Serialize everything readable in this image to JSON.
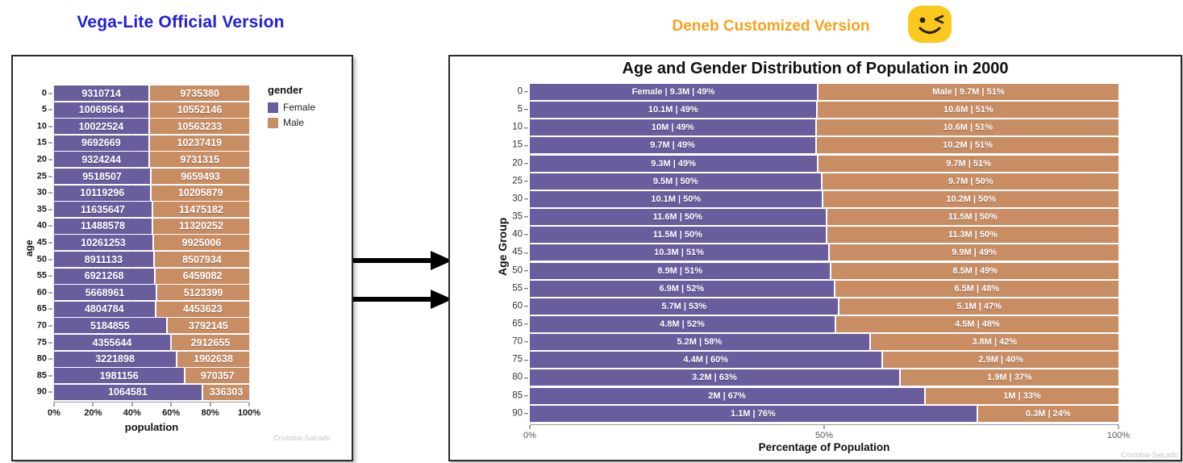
{
  "page": {
    "left_heading": "Vega-Lite Official Version",
    "right_heading": "Deneb Customized Version",
    "colors": {
      "left_heading": "#1f1fdd",
      "right_heading": "#f9a21b",
      "female": "#6a5d9e",
      "male": "#c98d64",
      "emoji_yellow": "#fcc81d",
      "arrow": "#000000"
    },
    "icons": {
      "right_heading_emoji": "winking-face",
      "between_panels": "right-arrow"
    }
  },
  "chart_data": [
    {
      "type": "bar",
      "variant": "horizontal-normalized-stacked",
      "title": "",
      "legend_title": "gender",
      "legend_position": "top-right",
      "categories": [
        "0",
        "5",
        "10",
        "15",
        "20",
        "25",
        "30",
        "35",
        "40",
        "45",
        "50",
        "55",
        "60",
        "65",
        "70",
        "75",
        "80",
        "85",
        "90"
      ],
      "series": [
        {
          "name": "Female",
          "color": "#6a5d9e",
          "values": [
            9310714,
            10069564,
            10022524,
            9692669,
            9324244,
            9518507,
            10119296,
            11635647,
            11488578,
            10261253,
            8911133,
            6921268,
            5668961,
            4804784,
            5184855,
            4355644,
            3221898,
            1981156,
            1064581
          ]
        },
        {
          "name": "Male",
          "color": "#c98d64",
          "values": [
            9735380,
            10552146,
            10563233,
            10237419,
            9731315,
            9659493,
            10205879,
            11475182,
            11320252,
            9925006,
            8507934,
            6459082,
            5123399,
            4453623,
            3792145,
            2912655,
            1902638,
            970357,
            336303
          ]
        }
      ],
      "xlabel": "population",
      "ylabel": "age",
      "x_ticks": [
        "0%",
        "20%",
        "40%",
        "60%",
        "80%",
        "100%"
      ],
      "xlim": [
        "0%",
        "100%"
      ],
      "grid": true,
      "bar_label_style": "raw population values on bars",
      "watermark": "Cristobal-Salcado"
    },
    {
      "type": "bar",
      "variant": "horizontal-normalized-stacked",
      "title": "Age and Gender Distribution of Population in 2000",
      "categories": [
        "0",
        "5",
        "10",
        "15",
        "20",
        "25",
        "30",
        "35",
        "40",
        "45",
        "50",
        "55",
        "60",
        "65",
        "70",
        "75",
        "80",
        "85",
        "90"
      ],
      "series": [
        {
          "name": "Female",
          "color": "#6a5d9e",
          "values": [
            9310714,
            10069564,
            10022524,
            9692669,
            9324244,
            9518507,
            10119296,
            11635647,
            11488578,
            10261253,
            8911133,
            6921268,
            5668961,
            4804784,
            5184855,
            4355644,
            3221898,
            1981156,
            1064581
          ],
          "labels": [
            "Female | 9.3M | 49%",
            "10.1M | 49%",
            "10M | 49%",
            "9.7M | 49%",
            "9.3M | 49%",
            "9.5M | 50%",
            "10.1M | 50%",
            "11.6M | 50%",
            "11.5M | 50%",
            "10.3M | 51%",
            "8.9M | 51%",
            "6.9M | 52%",
            "5.7M | 53%",
            "4.8M | 52%",
            "5.2M | 58%",
            "4.4M | 60%",
            "3.2M | 63%",
            "2M | 67%",
            "1.1M | 76%"
          ]
        },
        {
          "name": "Male",
          "color": "#c98d64",
          "values": [
            9735380,
            10552146,
            10563233,
            10237419,
            9731315,
            9659493,
            10205879,
            11475182,
            11320252,
            9925006,
            8507934,
            6459082,
            5123399,
            4453623,
            3792145,
            2912655,
            1902638,
            970357,
            336303
          ],
          "labels": [
            "Male | 9.7M | 51%",
            "10.6M | 51%",
            "10.6M | 51%",
            "10.2M | 51%",
            "9.7M | 51%",
            "9.7M | 50%",
            "10.2M | 50%",
            "11.5M | 50%",
            "11.3M | 50%",
            "9.9M | 49%",
            "8.5M | 49%",
            "6.5M | 48%",
            "5.1M | 47%",
            "4.5M | 48%",
            "3.8M | 42%",
            "2.9M | 40%",
            "1.9M | 37%",
            "1M | 33%",
            "0.3M | 24%"
          ]
        }
      ],
      "xlabel": "Percentage of Population",
      "ylabel": "Age Group",
      "x_ticks": [
        "0%",
        "50%",
        "100%"
      ],
      "xlim": [
        "0%",
        "100%"
      ],
      "grid": false,
      "bar_label_style": "name | millions | percent on bars",
      "watermark": "Cristobal-Salcado"
    }
  ]
}
